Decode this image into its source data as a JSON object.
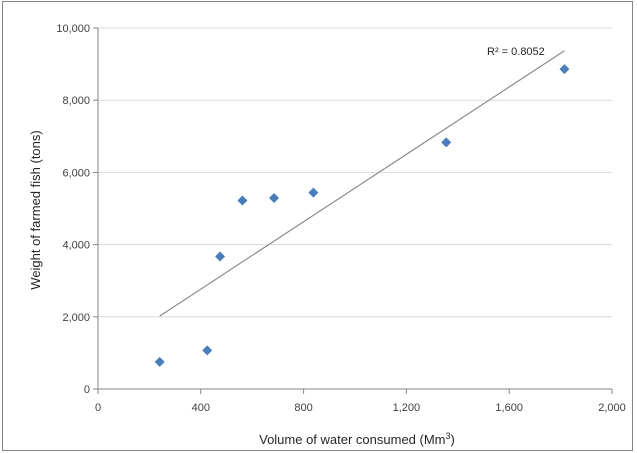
{
  "chart_data": {
    "type": "scatter",
    "xlabel_main": "Volume of water consumed (Mm",
    "xlabel_sup": "3",
    "xlabel_end": ")",
    "ylabel": "Weight of farmed fish (tons)",
    "xlim": [
      0,
      2000
    ],
    "ylim": [
      0,
      10000
    ],
    "xticks": [
      0,
      400,
      800,
      1200,
      1600,
      2000
    ],
    "yticks": [
      0,
      2000,
      4000,
      6000,
      8000,
      10000
    ],
    "xtick_labels": [
      "0",
      "400",
      "800",
      "1,200",
      "1,600",
      "2,000"
    ],
    "ytick_labels": [
      "0",
      "2,000",
      "4,000",
      "6,000",
      "8,000",
      "10,000"
    ],
    "grid": "horizontal",
    "points": [
      {
        "x": 240,
        "y": 750
      },
      {
        "x": 425,
        "y": 1070
      },
      {
        "x": 475,
        "y": 3670
      },
      {
        "x": 562,
        "y": 5220
      },
      {
        "x": 685,
        "y": 5290
      },
      {
        "x": 838,
        "y": 5440
      },
      {
        "x": 1355,
        "y": 6830
      },
      {
        "x": 1815,
        "y": 8860
      }
    ],
    "trendline": {
      "x": [
        240,
        1815
      ],
      "y": [
        2020,
        9370
      ]
    },
    "r2_label": "R² = 0.8052",
    "colors": {
      "marker": "#4a7ebb",
      "trendline": "#8c8c8c",
      "grid": "#d9d9d9",
      "axis": "#868686"
    }
  }
}
